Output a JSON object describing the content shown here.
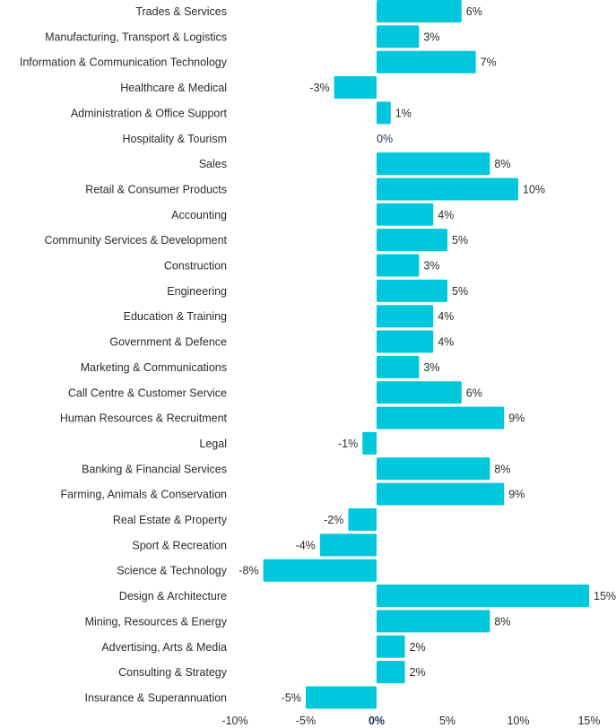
{
  "colors": {
    "bar": "#00c8dc",
    "text": "#2b2b2b",
    "zero_text": "#1f2d5a"
  },
  "chart_data": {
    "type": "bar",
    "orientation": "horizontal",
    "title": "",
    "xlabel": "",
    "ylabel": "",
    "xlim": [
      -10,
      15
    ],
    "xticks": [
      -10,
      -5,
      0,
      5,
      10,
      15
    ],
    "xtick_labels": [
      "-10%",
      "-5%",
      "0%",
      "5%",
      "10%",
      "15%"
    ],
    "grid": false,
    "legend": "none",
    "categories": [
      "Trades & Services",
      "Manufacturing, Transport & Logistics",
      "Information & Communication Technology",
      "Healthcare & Medical",
      "Administration & Office Support",
      "Hospitality & Tourism",
      "Sales",
      "Retail & Consumer Products",
      "Accounting",
      "Community Services & Development",
      "Construction",
      "Engineering",
      "Education & Training",
      "Government & Defence",
      "Marketing & Communications",
      "Call Centre & Customer Service",
      "Human Resources & Recruitment",
      "Legal",
      "Banking & Financial Services",
      "Farming, Animals & Conservation",
      "Real Estate & Property",
      "Sport & Recreation",
      "Science & Technology",
      "Design & Architecture",
      "Mining, Resources & Energy",
      "Advertising, Arts & Media",
      "Consulting & Strategy",
      "Insurance & Superannuation"
    ],
    "values": [
      6,
      3,
      7,
      -3,
      1,
      0,
      8,
      10,
      4,
      5,
      3,
      5,
      4,
      4,
      3,
      6,
      9,
      -1,
      8,
      9,
      -2,
      -4,
      -8,
      15,
      8,
      2,
      2,
      -5
    ],
    "value_labels": [
      "6%",
      "3%",
      "7%",
      "-3%",
      "1%",
      "0%",
      "8%",
      "10%",
      "4%",
      "5%",
      "3%",
      "5%",
      "4%",
      "4%",
      "3%",
      "6%",
      "9%",
      "-1%",
      "8%",
      "9%",
      "-2%",
      "-4%",
      "-8%",
      "15%",
      "8%",
      "2%",
      "2%",
      "-5%"
    ]
  }
}
